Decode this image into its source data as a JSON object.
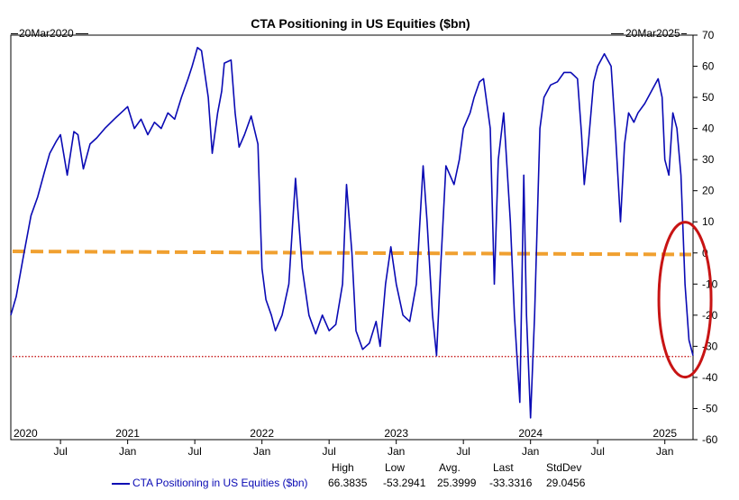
{
  "chart_data": {
    "type": "line",
    "title": "CTA Positioning in US Equities ($bn)",
    "start_date": "20Mar2020",
    "end_date": "20Mar2025",
    "xlim": [
      2020.13,
      2025.21
    ],
    "ylim": [
      -60,
      70
    ],
    "y_ticks": [
      70,
      60,
      50,
      40,
      30,
      20,
      10,
      0,
      -10,
      -20,
      -30,
      -40,
      -50,
      -60
    ],
    "year_labels": [
      {
        "label": "2020",
        "x": 2020.13
      },
      {
        "label": "2021",
        "x": 2021.0
      },
      {
        "label": "2022",
        "x": 2022.0
      },
      {
        "label": "2023",
        "x": 2023.0
      },
      {
        "label": "2024",
        "x": 2024.0
      },
      {
        "label": "2025",
        "x": 2025.0
      }
    ],
    "month_ticks": [
      {
        "label": "Jul",
        "x": 2020.5
      },
      {
        "label": "Jan",
        "x": 2021.0
      },
      {
        "label": "Jul",
        "x": 2021.5
      },
      {
        "label": "Jan",
        "x": 2022.0
      },
      {
        "label": "Jul",
        "x": 2022.5
      },
      {
        "label": "Jan",
        "x": 2023.0
      },
      {
        "label": "Jul",
        "x": 2023.5
      },
      {
        "label": "Jan",
        "x": 2024.0
      },
      {
        "label": "Jul",
        "x": 2024.5
      },
      {
        "label": "Jan",
        "x": 2025.0
      }
    ],
    "series": [
      {
        "name": "CTA Positioning in US Equities ($bn)",
        "color": "#0a0ab4",
        "points": [
          [
            2020.13,
            -20
          ],
          [
            2020.17,
            -14
          ],
          [
            2020.22,
            -2
          ],
          [
            2020.28,
            12
          ],
          [
            2020.33,
            18
          ],
          [
            2020.38,
            26
          ],
          [
            2020.42,
            32
          ],
          [
            2020.47,
            36
          ],
          [
            2020.5,
            38
          ],
          [
            2020.55,
            25
          ],
          [
            2020.6,
            39
          ],
          [
            2020.63,
            38
          ],
          [
            2020.67,
            27
          ],
          [
            2020.72,
            35
          ],
          [
            2020.77,
            37
          ],
          [
            2020.83,
            40
          ],
          [
            2020.9,
            43
          ],
          [
            2020.95,
            45
          ],
          [
            2021.0,
            47
          ],
          [
            2021.05,
            40
          ],
          [
            2021.1,
            43
          ],
          [
            2021.15,
            38
          ],
          [
            2021.2,
            42
          ],
          [
            2021.25,
            40
          ],
          [
            2021.3,
            45
          ],
          [
            2021.35,
            43
          ],
          [
            2021.4,
            50
          ],
          [
            2021.45,
            56
          ],
          [
            2021.48,
            60
          ],
          [
            2021.52,
            66
          ],
          [
            2021.55,
            65
          ],
          [
            2021.6,
            50
          ],
          [
            2021.63,
            32
          ],
          [
            2021.67,
            45
          ],
          [
            2021.7,
            52
          ],
          [
            2021.72,
            61
          ],
          [
            2021.77,
            62
          ],
          [
            2021.8,
            45
          ],
          [
            2021.83,
            34
          ],
          [
            2021.87,
            38
          ],
          [
            2021.92,
            44
          ],
          [
            2021.97,
            35
          ],
          [
            2022.0,
            -5
          ],
          [
            2022.03,
            -15
          ],
          [
            2022.07,
            -20
          ],
          [
            2022.1,
            -25
          ],
          [
            2022.15,
            -20
          ],
          [
            2022.2,
            -10
          ],
          [
            2022.25,
            24
          ],
          [
            2022.3,
            -5
          ],
          [
            2022.35,
            -20
          ],
          [
            2022.4,
            -26
          ],
          [
            2022.45,
            -20
          ],
          [
            2022.5,
            -25
          ],
          [
            2022.55,
            -23
          ],
          [
            2022.6,
            -10
          ],
          [
            2022.63,
            22
          ],
          [
            2022.67,
            0
          ],
          [
            2022.7,
            -25
          ],
          [
            2022.75,
            -31
          ],
          [
            2022.8,
            -29
          ],
          [
            2022.85,
            -22
          ],
          [
            2022.88,
            -30
          ],
          [
            2022.92,
            -10
          ],
          [
            2022.96,
            2
          ],
          [
            2023.0,
            -10
          ],
          [
            2023.05,
            -20
          ],
          [
            2023.1,
            -22
          ],
          [
            2023.15,
            -10
          ],
          [
            2023.2,
            28
          ],
          [
            2023.23,
            10
          ],
          [
            2023.27,
            -20
          ],
          [
            2023.3,
            -33
          ],
          [
            2023.33,
            -5
          ],
          [
            2023.37,
            28
          ],
          [
            2023.4,
            25
          ],
          [
            2023.43,
            22
          ],
          [
            2023.47,
            30
          ],
          [
            2023.5,
            40
          ],
          [
            2023.55,
            45
          ],
          [
            2023.58,
            50
          ],
          [
            2023.62,
            55
          ],
          [
            2023.65,
            56
          ],
          [
            2023.7,
            40
          ],
          [
            2023.73,
            -10
          ],
          [
            2023.76,
            30
          ],
          [
            2023.8,
            45
          ],
          [
            2023.85,
            10
          ],
          [
            2023.88,
            -20
          ],
          [
            2023.92,
            -48
          ],
          [
            2023.95,
            25
          ],
          [
            2023.97,
            -20
          ],
          [
            2024.0,
            -53
          ],
          [
            2024.03,
            -20
          ],
          [
            2024.07,
            40
          ],
          [
            2024.1,
            50
          ],
          [
            2024.15,
            54
          ],
          [
            2024.2,
            55
          ],
          [
            2024.25,
            58
          ],
          [
            2024.3,
            58
          ],
          [
            2024.35,
            56
          ],
          [
            2024.38,
            38
          ],
          [
            2024.4,
            22
          ],
          [
            2024.43,
            35
          ],
          [
            2024.47,
            55
          ],
          [
            2024.5,
            60
          ],
          [
            2024.55,
            64
          ],
          [
            2024.6,
            60
          ],
          [
            2024.63,
            40
          ],
          [
            2024.67,
            10
          ],
          [
            2024.7,
            35
          ],
          [
            2024.73,
            45
          ],
          [
            2024.77,
            42
          ],
          [
            2024.8,
            45
          ],
          [
            2024.85,
            48
          ],
          [
            2024.9,
            52
          ],
          [
            2024.95,
            56
          ],
          [
            2024.98,
            50
          ],
          [
            2025.0,
            30
          ],
          [
            2025.03,
            25
          ],
          [
            2025.06,
            45
          ],
          [
            2025.09,
            40
          ],
          [
            2025.12,
            25
          ],
          [
            2025.15,
            -10
          ],
          [
            2025.18,
            -28
          ],
          [
            2025.21,
            -33
          ]
        ]
      }
    ],
    "reference_lines": [
      {
        "name": "zero-line",
        "y": 0.5,
        "y_end": -0.5,
        "color": "#f0a030",
        "style": "dashed"
      },
      {
        "name": "low-line",
        "y": -33.3,
        "color": "#c00000",
        "style": "dotted"
      }
    ],
    "annotation": {
      "shape": "ellipse",
      "color": "#c81414",
      "x": 2025.15,
      "y": -15
    },
    "legend": {
      "headers": [
        "High",
        "Low",
        "Avg.",
        "Last",
        "StdDev"
      ],
      "values": [
        "66.3835",
        "-53.2941",
        "25.3999",
        "-33.3316",
        "29.0456"
      ]
    }
  }
}
